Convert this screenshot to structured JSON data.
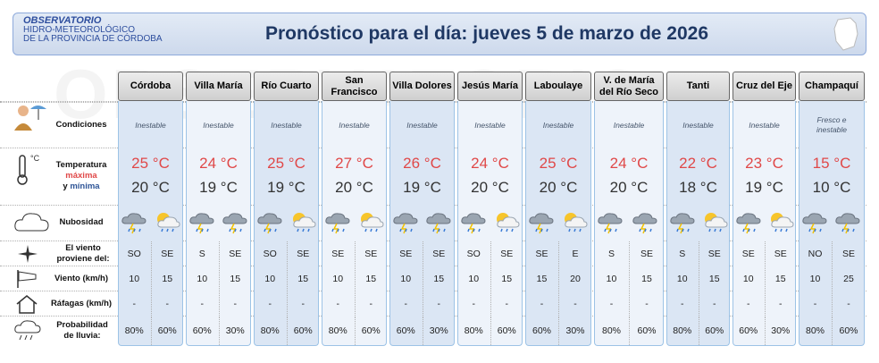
{
  "header": {
    "logo": [
      "OBSERVATORIO",
      "HIDRO-METEOROLÓGICO",
      "DE LA PROVINCIA DE CÓRDOBA"
    ],
    "title": "Pronóstico para el día: jueves 5 de marzo de 2026"
  },
  "row_labels": {
    "conditions": "Condiciones",
    "temperature": "Temperatura",
    "max": "máxima",
    "and": "y",
    "min": "mínima",
    "cloudiness": "Nubosidad",
    "wind_from": "El viento proviene del:",
    "wind": "Viento (km/h)",
    "gusts": "Ráfagas (km/h)",
    "rain": "Probabilidad de lluvia:"
  },
  "cities": [
    {
      "name": "Córdoba",
      "conditions": "Inestable",
      "max": "25 °C",
      "min": "20 °C",
      "wind_dir": [
        "SO",
        "SE"
      ],
      "wind": [
        10,
        15
      ],
      "gusts": [
        "-",
        "-"
      ],
      "rain": [
        "80%",
        "60%"
      ]
    },
    {
      "name": "Villa María",
      "conditions": "Inestable",
      "max": "24 °C",
      "min": "19 °C",
      "wind_dir": [
        "S",
        "SE"
      ],
      "wind": [
        10,
        15
      ],
      "gusts": [
        "-",
        "-"
      ],
      "rain": [
        "60%",
        "30%"
      ]
    },
    {
      "name": "Río Cuarto",
      "conditions": "Inestable",
      "max": "25 °C",
      "min": "19 °C",
      "wind_dir": [
        "SO",
        "SE"
      ],
      "wind": [
        10,
        15
      ],
      "gusts": [
        "-",
        "-"
      ],
      "rain": [
        "80%",
        "60%"
      ]
    },
    {
      "name": "San Francisco",
      "conditions": "Inestable",
      "max": "27 °C",
      "min": "20 °C",
      "wind_dir": [
        "SE",
        "SE"
      ],
      "wind": [
        10,
        15
      ],
      "gusts": [
        "-",
        "-"
      ],
      "rain": [
        "80%",
        "60%"
      ]
    },
    {
      "name": "Villa Dolores",
      "conditions": "Inestable",
      "max": "26 °C",
      "min": "19 °C",
      "wind_dir": [
        "SE",
        "SE"
      ],
      "wind": [
        10,
        15
      ],
      "gusts": [
        "-",
        "-"
      ],
      "rain": [
        "60%",
        "30%"
      ]
    },
    {
      "name": "Jesús María",
      "conditions": "Inestable",
      "max": "24 °C",
      "min": "20 °C",
      "wind_dir": [
        "SO",
        "SE"
      ],
      "wind": [
        10,
        15
      ],
      "gusts": [
        "-",
        "-"
      ],
      "rain": [
        "80%",
        "60%"
      ]
    },
    {
      "name": "Laboulaye",
      "conditions": "Inestable",
      "max": "25 °C",
      "min": "20 °C",
      "wind_dir": [
        "SE",
        "E"
      ],
      "wind": [
        15,
        20
      ],
      "gusts": [
        "-",
        "-"
      ],
      "rain": [
        "60%",
        "30%"
      ]
    },
    {
      "name": "V. de María del Río Seco",
      "conditions": "Inestable",
      "max": "24 °C",
      "min": "20 °C",
      "wind_dir": [
        "S",
        "SE"
      ],
      "wind": [
        10,
        15
      ],
      "gusts": [
        "-",
        "-"
      ],
      "rain": [
        "80%",
        "60%"
      ]
    },
    {
      "name": "Tanti",
      "conditions": "Inestable",
      "max": "22 °C",
      "min": "18 °C",
      "wind_dir": [
        "S",
        "SE"
      ],
      "wind": [
        10,
        15
      ],
      "gusts": [
        "-",
        "-"
      ],
      "rain": [
        "80%",
        "60%"
      ]
    },
    {
      "name": "Cruz del Eje",
      "conditions": "Inestable",
      "max": "23 °C",
      "min": "19 °C",
      "wind_dir": [
        "SE",
        "SE"
      ],
      "wind": [
        10,
        15
      ],
      "gusts": [
        "-",
        "-"
      ],
      "rain": [
        "60%",
        "30%"
      ]
    },
    {
      "name": "Champaquí",
      "conditions": "Fresco e inestable",
      "max": "15 °C",
      "min": "10 °C",
      "wind_dir": [
        "NO",
        "SE"
      ],
      "wind": [
        10,
        25
      ],
      "gusts": [
        "-",
        "-"
      ],
      "rain": [
        "80%",
        "60%"
      ]
    }
  ]
}
